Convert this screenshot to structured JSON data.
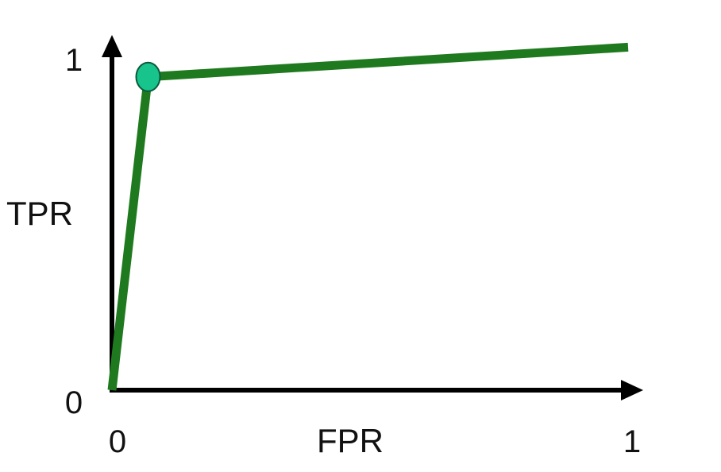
{
  "chart_data": {
    "type": "line",
    "xlabel": "FPR",
    "ylabel": "TPR",
    "xlim": [
      0,
      1
    ],
    "ylim": [
      0,
      1
    ],
    "x_ticks": [
      "0",
      "1"
    ],
    "y_ticks": [
      "0",
      "1"
    ],
    "grid": false,
    "legend": "none",
    "series": [
      {
        "x": [
          0,
          0.07,
          1
        ],
        "y": [
          0,
          0.95,
          1.04
        ],
        "color": "#1f7a1f"
      }
    ],
    "markers": [
      {
        "x": 0.07,
        "y": 0.95,
        "color": "#17c48c"
      }
    ]
  }
}
